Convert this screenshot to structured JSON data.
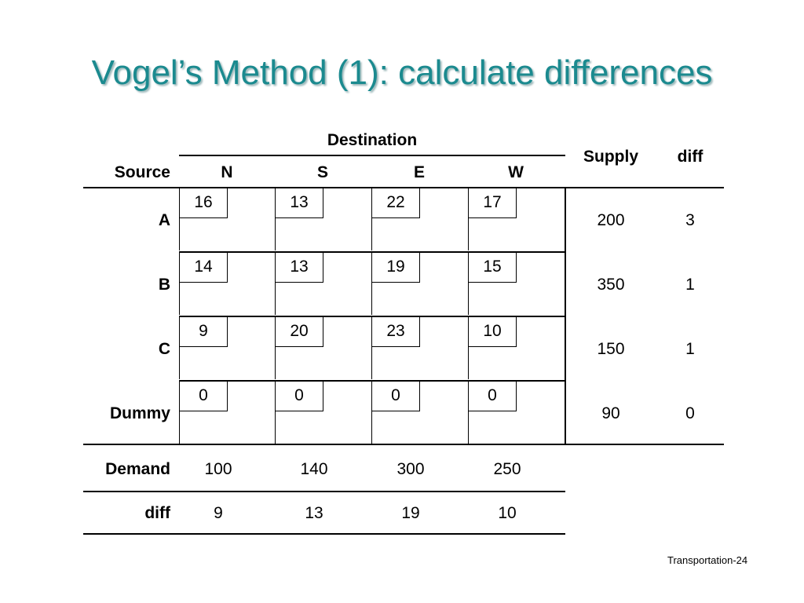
{
  "title": "Vogel’s Method (1): calculate differences",
  "header": {
    "destination": "Destination",
    "source": "Source",
    "supply": "Supply",
    "diff": "diff",
    "columns": [
      "N",
      "S",
      "E",
      "W"
    ]
  },
  "rows": [
    {
      "label": "A",
      "costs": [
        "16",
        "13",
        "22",
        "17"
      ],
      "supply": "200",
      "diff": "3"
    },
    {
      "label": "B",
      "costs": [
        "14",
        "13",
        "19",
        "15"
      ],
      "supply": "350",
      "diff": "1"
    },
    {
      "label": "C",
      "costs": [
        "9",
        "20",
        "23",
        "10"
      ],
      "supply": "150",
      "diff": "1"
    },
    {
      "label": "Dummy",
      "costs": [
        "0",
        "0",
        "0",
        "0"
      ],
      "supply": "90",
      "diff": "0"
    }
  ],
  "demand": {
    "label": "Demand",
    "values": [
      "100",
      "140",
      "300",
      "250"
    ]
  },
  "col_diff": {
    "label": "diff",
    "values": [
      "9",
      "13",
      "19",
      "10"
    ]
  },
  "footer": "Transportation-24"
}
